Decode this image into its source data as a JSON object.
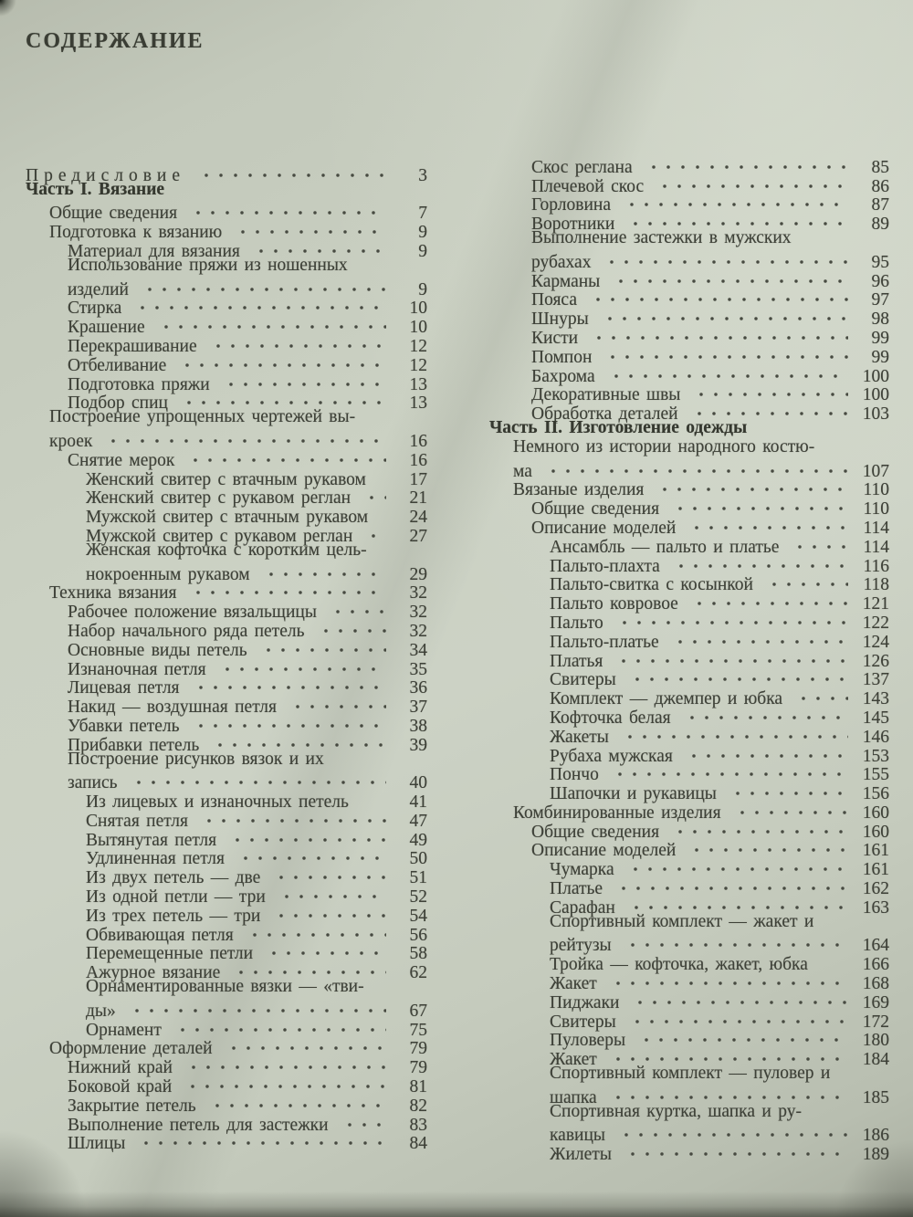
{
  "page": {
    "title": "СОДЕРЖАНИЕ"
  },
  "colors": {
    "paper": "#cbd1c3",
    "ink": "#3e4138",
    "edge_shadow": "#282b22"
  },
  "toc": {
    "left": [
      {
        "text": "Предисловие",
        "page": "3",
        "indent": 0,
        "leader": true
      },
      {
        "text": "Часть I. Вязание",
        "page": "",
        "indent": 0,
        "bold": true
      },
      {
        "text": "Общие сведения",
        "page": "7",
        "indent": 1,
        "leader": true
      },
      {
        "text": "Подготовка к вязанию",
        "page": "9",
        "indent": 1,
        "leader": true
      },
      {
        "text": "Материал для вязания",
        "page": "9",
        "indent": 2,
        "leader": true
      },
      {
        "text": "Использование пряжи из ношенных",
        "page": "",
        "indent": 2
      },
      {
        "text": "изделий",
        "page": "9",
        "indent": 2,
        "leader": true
      },
      {
        "text": "Стирка",
        "page": "10",
        "indent": 2,
        "leader": true
      },
      {
        "text": "Крашение",
        "page": "10",
        "indent": 2,
        "leader": true
      },
      {
        "text": "Перекрашивание",
        "page": "12",
        "indent": 2,
        "leader": true
      },
      {
        "text": "Отбеливание",
        "page": "12",
        "indent": 2,
        "leader": true
      },
      {
        "text": "Подготовка пряжи",
        "page": "13",
        "indent": 2,
        "leader": true
      },
      {
        "text": "Подбор спиц",
        "page": "13",
        "indent": 2,
        "leader": true
      },
      {
        "text": "Построение упрощенных чертежей вы-",
        "page": "",
        "indent": 1
      },
      {
        "text": "кроек",
        "page": "16",
        "indent": 1,
        "leader": true
      },
      {
        "text": "Снятие мерок",
        "page": "16",
        "indent": 2,
        "leader": true
      },
      {
        "text": "Женский свитер с втачным рукавом",
        "page": "17",
        "indent": 3,
        "leader": false
      },
      {
        "text": "Женский свитер с рукавом реглан",
        "page": "21",
        "indent": 3,
        "leader": true
      },
      {
        "text": "Мужской свитер с втачным рукавом",
        "page": "24",
        "indent": 3,
        "leader": false
      },
      {
        "text": "Мужской свитер с рукавом реглан",
        "page": "27",
        "indent": 3,
        "leader": true
      },
      {
        "text": "Женская кофточка с коротким цель-",
        "page": "",
        "indent": 3
      },
      {
        "text": "нокроенным рукавом",
        "page": "29",
        "indent": 3,
        "leader": true
      },
      {
        "text": "Техника вязания",
        "page": "32",
        "indent": 1,
        "leader": true
      },
      {
        "text": "Рабочее положение вязальщицы",
        "page": "32",
        "indent": 2,
        "leader": true
      },
      {
        "text": "Набор начального ряда петель",
        "page": "32",
        "indent": 2,
        "leader": true
      },
      {
        "text": "Основные виды петель",
        "page": "34",
        "indent": 2,
        "leader": true
      },
      {
        "text": "Изнаночная петля",
        "page": "35",
        "indent": 2,
        "leader": true
      },
      {
        "text": "Лицевая петля",
        "page": "36",
        "indent": 2,
        "leader": true
      },
      {
        "text": "Накид — воздушная петля",
        "page": "37",
        "indent": 2,
        "leader": true
      },
      {
        "text": "Убавки петель",
        "page": "38",
        "indent": 2,
        "leader": true
      },
      {
        "text": "Прибавки петель",
        "page": "39",
        "indent": 2,
        "leader": true
      },
      {
        "text": "Построение рисунков вязок и их",
        "page": "",
        "indent": 2
      },
      {
        "text": "запись",
        "page": "40",
        "indent": 2,
        "leader": true
      },
      {
        "text": "Из лицевых и изнаночных петель",
        "page": "41",
        "indent": 3,
        "leader": false
      },
      {
        "text": "Снятая петля",
        "page": "47",
        "indent": 3,
        "leader": true
      },
      {
        "text": "Вытянутая петля",
        "page": "49",
        "indent": 3,
        "leader": true
      },
      {
        "text": "Удлиненная петля",
        "page": "50",
        "indent": 3,
        "leader": true
      },
      {
        "text": "Из двух петель — две",
        "page": "51",
        "indent": 3,
        "leader": true
      },
      {
        "text": "Из одной петли — три",
        "page": "52",
        "indent": 3,
        "leader": true
      },
      {
        "text": "Из трех петель — три",
        "page": "54",
        "indent": 3,
        "leader": true
      },
      {
        "text": "Обвивающая петля",
        "page": "56",
        "indent": 3,
        "leader": true
      },
      {
        "text": "Перемещенные петли",
        "page": "58",
        "indent": 3,
        "leader": true
      },
      {
        "text": "Ажурное вязание",
        "page": "62",
        "indent": 3,
        "leader": true
      },
      {
        "text": "Орнаментированные вязки — «тви-",
        "page": "",
        "indent": 3
      },
      {
        "text": "ды»",
        "page": "67",
        "indent": 3,
        "leader": true
      },
      {
        "text": "Орнамент",
        "page": "75",
        "indent": 3,
        "leader": true
      },
      {
        "text": "Оформление деталей",
        "page": "79",
        "indent": 1,
        "leader": true
      },
      {
        "text": "Нижний край",
        "page": "79",
        "indent": 2,
        "leader": true
      },
      {
        "text": "Боковой край",
        "page": "81",
        "indent": 2,
        "leader": true
      },
      {
        "text": "Закрытие петель",
        "page": "82",
        "indent": 2,
        "leader": true
      },
      {
        "text": "Выполнение петель для застежки",
        "page": "83",
        "indent": 2,
        "leader": true
      },
      {
        "text": "Шлицы",
        "page": "84",
        "indent": 2,
        "leader": true
      }
    ],
    "right": [
      {
        "text": "Скос реглана",
        "page": "85",
        "indent": 2,
        "leader": true
      },
      {
        "text": "Плечевой скос",
        "page": "86",
        "indent": 2,
        "leader": true
      },
      {
        "text": "Горловина",
        "page": "87",
        "indent": 2,
        "leader": true
      },
      {
        "text": "Воротники",
        "page": "89",
        "indent": 2,
        "leader": true
      },
      {
        "text": "Выполнение застежки в мужских",
        "page": "",
        "indent": 2
      },
      {
        "text": "рубахах",
        "page": "95",
        "indent": 2,
        "leader": true
      },
      {
        "text": "Карманы",
        "page": "96",
        "indent": 2,
        "leader": true
      },
      {
        "text": "Пояса",
        "page": "97",
        "indent": 2,
        "leader": true
      },
      {
        "text": "Шнуры",
        "page": "98",
        "indent": 2,
        "leader": true
      },
      {
        "text": "Кисти",
        "page": "99",
        "indent": 2,
        "leader": true
      },
      {
        "text": "Помпон",
        "page": "99",
        "indent": 2,
        "leader": true
      },
      {
        "text": "Бахрома",
        "page": "100",
        "indent": 2,
        "leader": true
      },
      {
        "text": "Декоративные швы",
        "page": "100",
        "indent": 2,
        "leader": true
      },
      {
        "text": "Обработка деталей",
        "page": "103",
        "indent": 2,
        "leader": true
      },
      {
        "text": "Часть II. Изготовление одежды",
        "page": "",
        "indent": 0,
        "bold": true
      },
      {
        "text": "Немного из истории народного костю-",
        "page": "",
        "indent": 1
      },
      {
        "text": "ма",
        "page": "107",
        "indent": 1,
        "leader": true
      },
      {
        "text": "Вязаные изделия",
        "page": "110",
        "indent": 1,
        "leader": true
      },
      {
        "text": "Общие сведения",
        "page": "110",
        "indent": 2,
        "leader": true
      },
      {
        "text": "Описание моделей",
        "page": "114",
        "indent": 2,
        "leader": true
      },
      {
        "text": "Ансамбль — пальто и платье",
        "page": "114",
        "indent": 3,
        "leader": true
      },
      {
        "text": "Пальто-плахта",
        "page": "116",
        "indent": 3,
        "leader": true
      },
      {
        "text": "Пальто-свитка с косынкой",
        "page": "118",
        "indent": 3,
        "leader": true
      },
      {
        "text": "Пальто ковровое",
        "page": "121",
        "indent": 3,
        "leader": true
      },
      {
        "text": "Пальто",
        "page": "122",
        "indent": 3,
        "leader": true
      },
      {
        "text": "Пальто-платье",
        "page": "124",
        "indent": 3,
        "leader": true
      },
      {
        "text": "Платья",
        "page": "126",
        "indent": 3,
        "leader": true
      },
      {
        "text": "Свитеры",
        "page": "137",
        "indent": 3,
        "leader": true
      },
      {
        "text": "Комплект — джемпер и юбка",
        "page": "143",
        "indent": 3,
        "leader": true
      },
      {
        "text": "Кофточка белая",
        "page": "145",
        "indent": 3,
        "leader": true
      },
      {
        "text": "Жакеты",
        "page": "146",
        "indent": 3,
        "leader": true
      },
      {
        "text": "Рубаха мужская",
        "page": "153",
        "indent": 3,
        "leader": true
      },
      {
        "text": "Пончо",
        "page": "155",
        "indent": 3,
        "leader": true
      },
      {
        "text": "Шапочки и рукавицы",
        "page": "156",
        "indent": 3,
        "leader": true
      },
      {
        "text": "Комбинированные изделия",
        "page": "160",
        "indent": 1,
        "leader": true
      },
      {
        "text": "Общие сведения",
        "page": "160",
        "indent": 2,
        "leader": true
      },
      {
        "text": "Описание моделей",
        "page": "161",
        "indent": 2,
        "leader": true
      },
      {
        "text": "Чумарка",
        "page": "161",
        "indent": 3,
        "leader": true
      },
      {
        "text": "Платье",
        "page": "162",
        "indent": 3,
        "leader": true
      },
      {
        "text": "Сарафан",
        "page": "163",
        "indent": 3,
        "leader": true
      },
      {
        "text": "Спортивный комплект — жакет и",
        "page": "",
        "indent": 3
      },
      {
        "text": "рейтузы",
        "page": "164",
        "indent": 3,
        "leader": true
      },
      {
        "text": "Тройка — кофточка, жакет, юбка",
        "page": "166",
        "indent": 3,
        "leader": false
      },
      {
        "text": "Жакет",
        "page": "168",
        "indent": 3,
        "leader": true
      },
      {
        "text": "Пиджаки",
        "page": "169",
        "indent": 3,
        "leader": true
      },
      {
        "text": "Свитеры",
        "page": "172",
        "indent": 3,
        "leader": true
      },
      {
        "text": "Пуловеры",
        "page": "180",
        "indent": 3,
        "leader": true
      },
      {
        "text": "Жакет",
        "page": "184",
        "indent": 3,
        "leader": true
      },
      {
        "text": "Спортивный комплект — пуловер и",
        "page": "",
        "indent": 3
      },
      {
        "text": "шапка",
        "page": "185",
        "indent": 3,
        "leader": true
      },
      {
        "text": "Спортивная куртка, шапка и ру-",
        "page": "",
        "indent": 3
      },
      {
        "text": "кавицы",
        "page": "186",
        "indent": 3,
        "leader": true
      },
      {
        "text": "Жилеты",
        "page": "189",
        "indent": 3,
        "leader": true
      }
    ]
  }
}
